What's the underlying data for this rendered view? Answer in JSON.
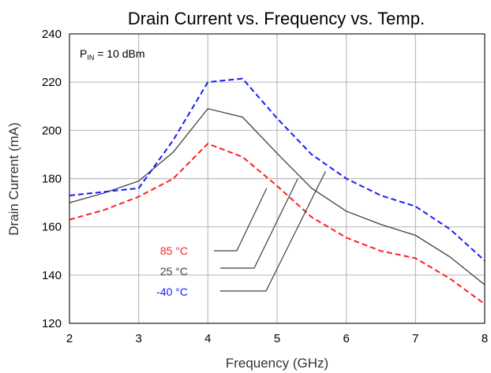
{
  "chart_data": {
    "type": "line",
    "title": "Drain Current vs. Frequency vs. Temp.",
    "xlabel": "Frequency (GHz)",
    "ylabel": "Drain Current (mA)",
    "xlim": [
      2,
      8
    ],
    "ylim": [
      120,
      240
    ],
    "xticks": [
      2,
      3,
      4,
      5,
      6,
      7,
      8
    ],
    "yticks": [
      120,
      140,
      160,
      180,
      200,
      220,
      240
    ],
    "grid": true,
    "annotation": {
      "main": "P",
      "sub": "IN",
      "rest": " = 10 dBm"
    },
    "series": [
      {
        "name": "85 °C",
        "color": "#ff2020",
        "style": "dashed",
        "x": [
          2,
          2.5,
          3,
          3.5,
          4,
          4.5,
          5,
          5.5,
          6,
          6.5,
          7,
          7.5,
          8
        ],
        "y": [
          163,
          167,
          172.5,
          180,
          194.5,
          189,
          177,
          164,
          155.5,
          150,
          147,
          138.5,
          128
        ]
      },
      {
        "name": "25 °C",
        "color": "#404040",
        "style": "solid",
        "x": [
          2,
          2.5,
          3,
          3.5,
          4,
          4.5,
          5,
          5.5,
          6,
          6.5,
          7,
          7.5,
          8
        ],
        "y": [
          170,
          174,
          179,
          191,
          209,
          205.5,
          190.5,
          176,
          166.5,
          161,
          156.5,
          147.5,
          136
        ]
      },
      {
        "name": "-40 °C",
        "color": "#1a1aff",
        "style": "dashed",
        "x": [
          2,
          2.5,
          3,
          3.5,
          4,
          4.5,
          5,
          5.5,
          6,
          6.5,
          7,
          7.5,
          8
        ],
        "y": [
          173,
          174.5,
          176,
          196,
          220,
          221.5,
          205,
          190,
          180,
          173,
          168.5,
          159,
          146
        ]
      }
    ]
  }
}
